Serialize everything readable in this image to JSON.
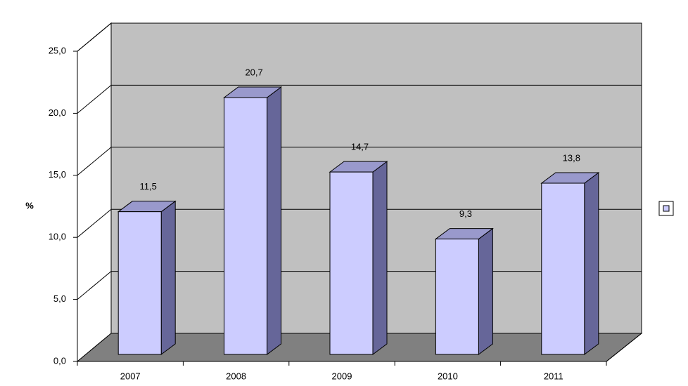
{
  "chart_data": {
    "type": "bar3d",
    "y_label": "%",
    "categories": [
      "2007",
      "2008",
      "2009",
      "2010",
      "2011"
    ],
    "values": [
      11.5,
      20.7,
      14.7,
      9.3,
      13.8
    ],
    "value_labels": [
      "11,5",
      "20,7",
      "14,7",
      "9,3",
      "13,8"
    ],
    "color": "#ccccff",
    "ylim": [
      0,
      25
    ],
    "yticks": [
      {
        "value": 0,
        "label": "0,0"
      },
      {
        "value": 5,
        "label": "5,0"
      },
      {
        "value": 10,
        "label": "10,0"
      },
      {
        "value": 15,
        "label": "15,0"
      },
      {
        "value": 20,
        "label": "20,0"
      },
      {
        "value": 25,
        "label": "25,0"
      }
    ],
    "grid": true
  }
}
